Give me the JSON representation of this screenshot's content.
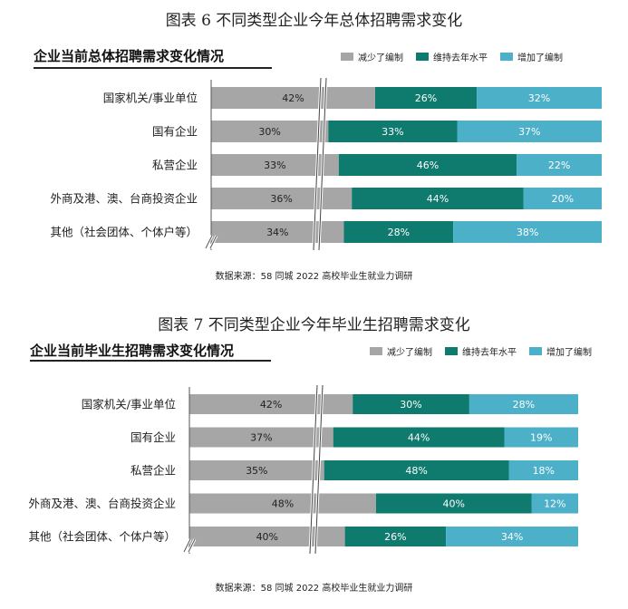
{
  "source_text": "数据来源：58 同城 2022 高校毕业生就业力调研",
  "colors": {
    "decrease": "#a6a6a6",
    "maintain": "#0f7a6e",
    "increase": "#4cb0c9"
  },
  "chart_data": [
    {
      "type": "bar",
      "figure_title": "图表  6    不同类型企业今年总体招聘需求变化",
      "title": "企业当前总体招聘需求变化情况",
      "legend": [
        "减少了编制",
        "维持去年水平",
        "增加了编制"
      ],
      "categories": [
        "国家机关/事业单位",
        "国有企业",
        "私营企业",
        "外商及港、澳、台商投资企业",
        "其他（社会团体、个体户等）"
      ],
      "series": [
        {
          "name": "减少了编制",
          "values": [
            42,
            30,
            33,
            36,
            34
          ]
        },
        {
          "name": "维持去年水平",
          "values": [
            26,
            33,
            46,
            44,
            28
          ]
        },
        {
          "name": "增加了编制",
          "values": [
            32,
            37,
            22,
            20,
            38
          ]
        }
      ],
      "stacked": true,
      "axis_break": true
    },
    {
      "type": "bar",
      "figure_title": "图表  7    不同类型企业今年毕业生招聘需求变化",
      "title": "企业当前毕业生招聘需求变化情况",
      "legend": [
        "减少了编制",
        "维持去年水平",
        "增加了编制"
      ],
      "categories": [
        "国家机关/事业单位",
        "国有企业",
        "私营企业",
        "外商及港、澳、台商投资企业",
        "其他（社会团体、个体户等）"
      ],
      "series": [
        {
          "name": "减少了编制",
          "values": [
            42,
            37,
            35,
            48,
            40
          ]
        },
        {
          "name": "维持去年水平",
          "values": [
            30,
            44,
            48,
            40,
            26
          ]
        },
        {
          "name": "增加了编制",
          "values": [
            28,
            19,
            18,
            12,
            34
          ]
        }
      ],
      "stacked": true,
      "axis_break": true
    }
  ]
}
